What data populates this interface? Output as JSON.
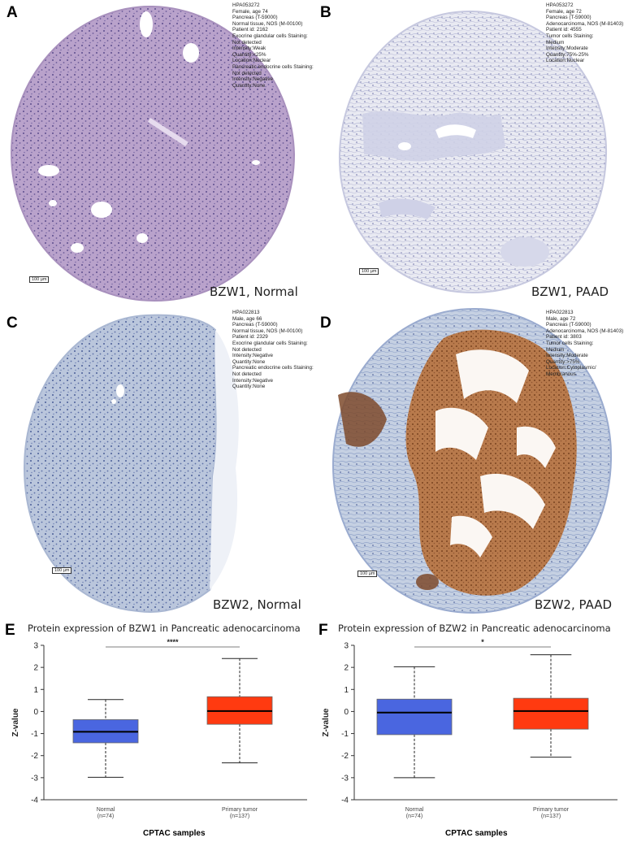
{
  "panels": [
    {
      "letter": "A",
      "caption": "BZW1, Normal",
      "scale": "100 µm",
      "meta": [
        "HPA053272",
        "Female, age 74",
        "Pancreas (T-59000)",
        "Normal tissue, NOS (M-00100)",
        "Patient id: 2162",
        "Exocrine glandular cells Staining:",
        "Not detected",
        "Intensity:Weak",
        "Quantity:<25%",
        "Location:Nuclear",
        "Pancreatic endocrine cells Staining:",
        "Not detected",
        "Intensity:Negative",
        "Quantity:None"
      ]
    },
    {
      "letter": "B",
      "caption": "BZW1, PAAD",
      "scale": "100 µm",
      "meta": [
        "HPA053272",
        "Female, age 72",
        "Pancreas (T-59000)",
        "Adenocarcinoma, NOS (M-81403)",
        "Patient id: 4555",
        "Tumor cells Staining:",
        "Medium",
        "Intensity:Moderate",
        "Quantity:75%-25%",
        "Location:Nuclear"
      ]
    },
    {
      "letter": "C",
      "caption": "BZW2, Normal",
      "scale": "100 µm",
      "meta": [
        "HPA022813",
        "Male, age 66",
        "Pancreas (T-59000)",
        "Normal tissue, NOS (M-00100)",
        "Patient id: 2329",
        "Exocrine glandular cells Staining:",
        "Not detected",
        "Intensity:Negative",
        "Quantity:None",
        "Pancreatic endocrine cells Staining:",
        "Not detected",
        "Intensity:Negative",
        "Quantity:None"
      ]
    },
    {
      "letter": "D",
      "caption": "BZW2, PAAD",
      "scale": "100 µm",
      "meta": [
        "HPA022813",
        "Male, age 72",
        "Pancreas (T-59000)",
        "Adenocarcinoma, NOS (M-81403)",
        "Patient id: 3803",
        "Tumor cells Staining:",
        "Medium",
        "Intensity:Moderate",
        "Quantity:>75%",
        "Location:Cytoplasmic/",
        "Membranous"
      ]
    }
  ],
  "colors": {
    "normal_box": "#4a66e0",
    "tumor_box": "#ff3a10",
    "stain_blue": "#b7c4dc",
    "stain_purple": "#b39bc6",
    "stain_brown": "#a86a3c"
  },
  "chart_data": [
    {
      "letter": "E",
      "type": "boxplot",
      "title": "Protein expression of BZW1 in Pancreatic adenocarcinoma",
      "ylabel": "Z-value",
      "xlabel": "CPTAC samples",
      "ylim": [
        -4,
        3
      ],
      "yticks": [
        "3",
        "2",
        "1",
        "0",
        "-1",
        "-2",
        "-3",
        "-4"
      ],
      "significance": "****",
      "groups": [
        {
          "name": "Normal",
          "n": "(n=74)",
          "min": -2.98,
          "q1": -1.42,
          "median": -0.92,
          "q3": -0.37,
          "max": 0.54
        },
        {
          "name": "Primary tumor",
          "n": "(n=137)",
          "min": -2.33,
          "q1": -0.58,
          "median": 0.02,
          "q3": 0.67,
          "max": 2.4
        }
      ]
    },
    {
      "letter": "F",
      "type": "boxplot",
      "title": "Protein expression of BZW2 in Pancreatic adenocarcinoma",
      "ylabel": "Z-value",
      "xlabel": "CPTAC samples",
      "ylim": [
        -4,
        3
      ],
      "yticks": [
        "3",
        "2",
        "1",
        "0",
        "-1",
        "-2",
        "-3",
        "-4"
      ],
      "significance": "*",
      "groups": [
        {
          "name": "Normal",
          "n": "(n=74)",
          "min": -3.0,
          "q1": -1.05,
          "median": -0.05,
          "q3": 0.56,
          "max": 2.03
        },
        {
          "name": "Primary tumor",
          "n": "(n=137)",
          "min": -2.07,
          "q1": -0.8,
          "median": 0.02,
          "q3": 0.6,
          "max": 2.57
        }
      ]
    }
  ]
}
